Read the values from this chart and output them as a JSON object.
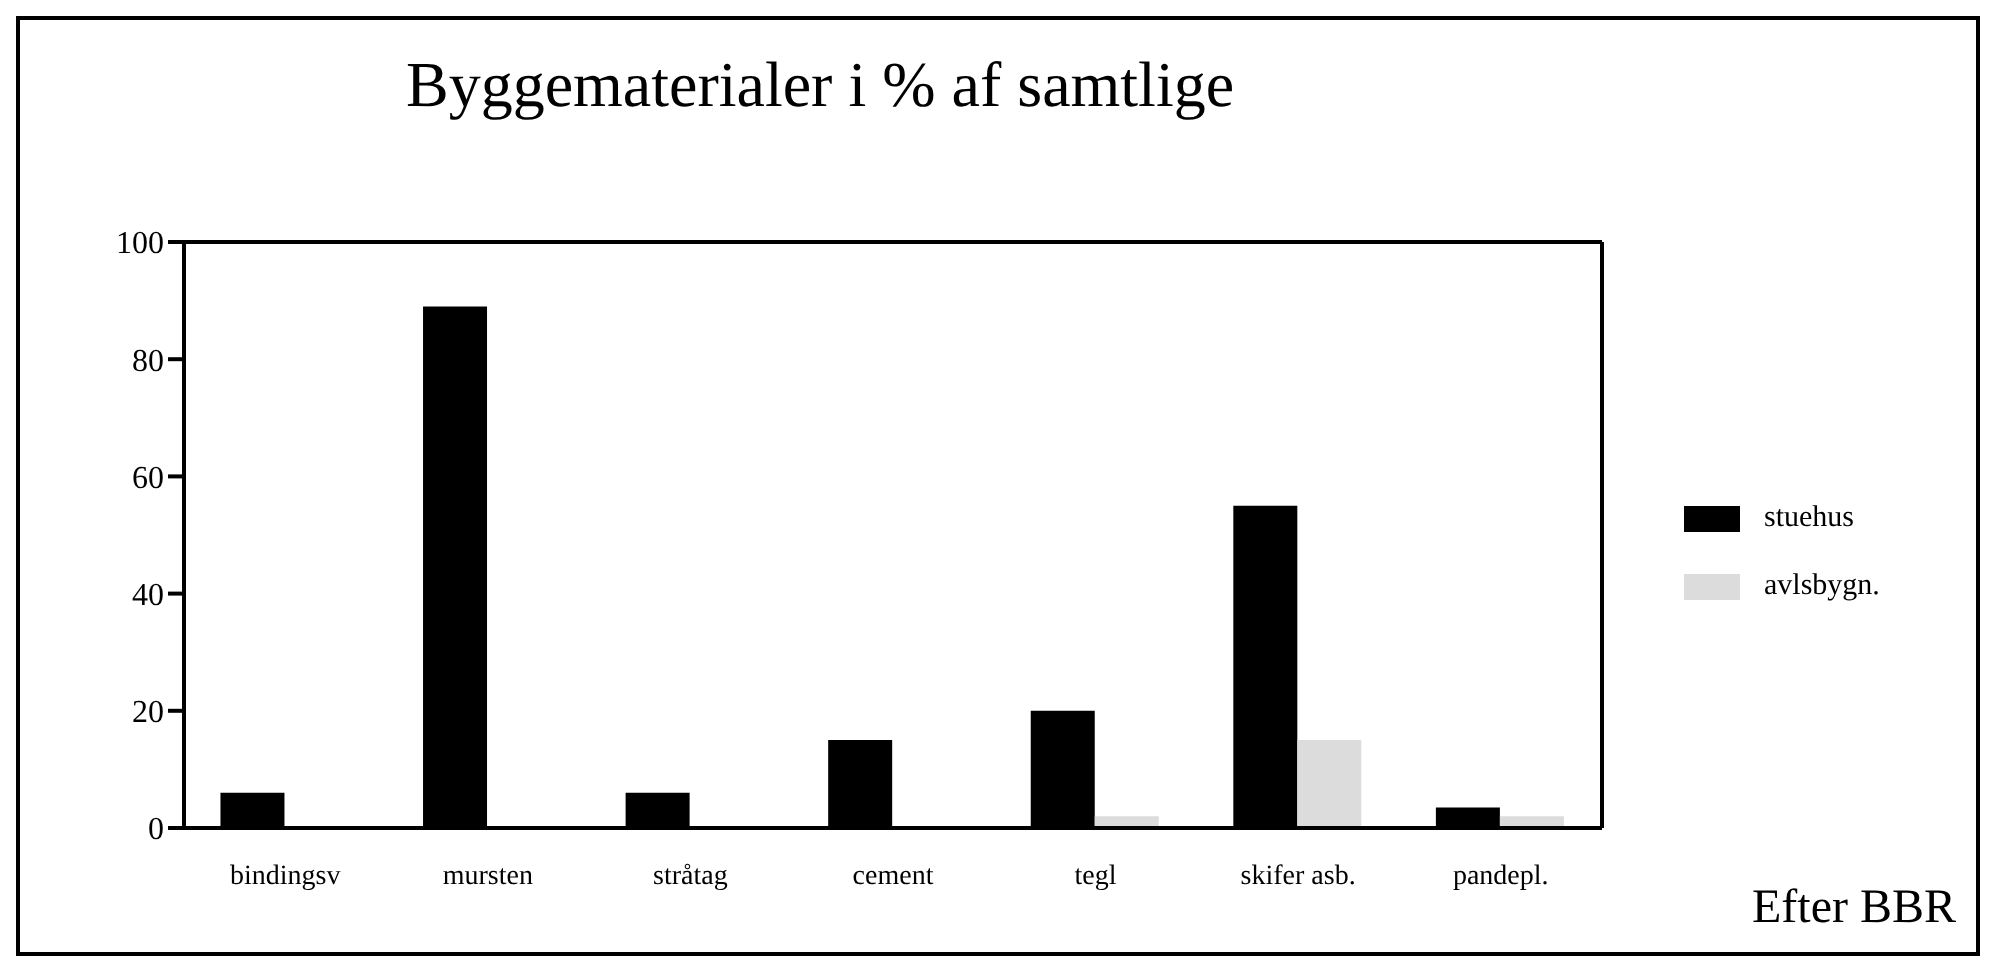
{
  "chart_data": {
    "type": "bar",
    "title": "Byggematerialer i % af samtlige",
    "categories": [
      "bindingsv",
      "mursten",
      "stråtag",
      "cement",
      "tegl",
      "skifer asb.",
      "pandepl."
    ],
    "series": [
      {
        "name": "stuehus",
        "color": "#000000",
        "values": [
          6,
          89,
          6,
          15,
          20,
          55,
          3.5
        ]
      },
      {
        "name": "avlsbygn.",
        "color": "#dcdcdc",
        "values": [
          null,
          null,
          null,
          null,
          2,
          15,
          2
        ]
      }
    ],
    "ylim": [
      0,
      100
    ],
    "yticks": [
      0,
      20,
      40,
      60,
      80,
      100
    ],
    "grid": false,
    "legend": "right",
    "annotations": [
      "Efter BBR"
    ]
  }
}
